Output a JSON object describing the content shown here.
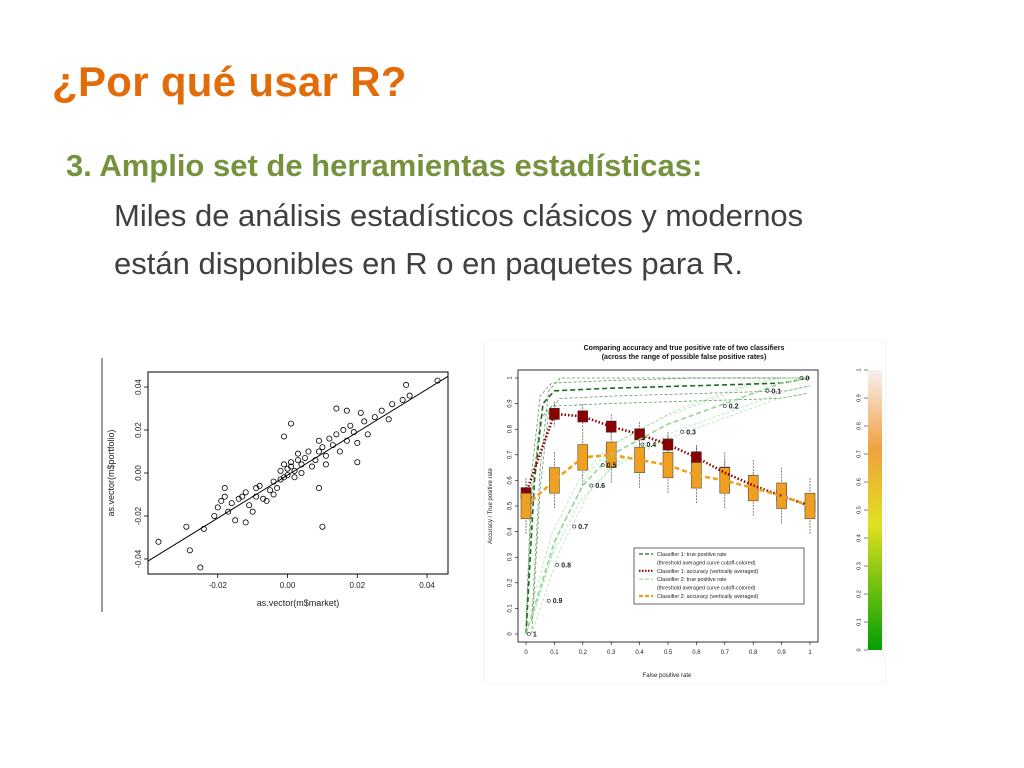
{
  "slide": {
    "title": "¿Por qué usar R?",
    "heading": "3. Amplio set de herramientas estadísticas:",
    "body_lines": [
      "Miles de análisis estadísticos clásicos y modernos",
      "están disponibles en R o en paquetes para R."
    ]
  },
  "colors": {
    "title": "#e36c0a",
    "heading": "#76923c",
    "body": "#404040",
    "classifier1_tpr": "#1e6b1e",
    "classifier1_acc": "#8b0000",
    "classifier2_tpr": "#90d890",
    "classifier2_acc": "#f0a020"
  },
  "chart_data": [
    {
      "type": "scatter",
      "title": "",
      "xlabel": "as.vector(m$market)",
      "ylabel": "as.vector(m$portfolio)",
      "x_ticks": [
        "-0.02",
        "0.00",
        "0.02",
        "0.04"
      ],
      "y_ticks": [
        "-0.04",
        "-0.02",
        "0.00",
        "0.02",
        "0.04"
      ],
      "xlim": [
        -0.04,
        0.046
      ],
      "ylim": [
        -0.047,
        0.047
      ],
      "regression_line": [
        [
          -0.04,
          -0.041
        ],
        [
          0.046,
          0.045
        ]
      ],
      "points": [
        [
          -0.037,
          -0.032
        ],
        [
          -0.029,
          -0.025
        ],
        [
          -0.028,
          -0.036
        ],
        [
          -0.025,
          -0.044
        ],
        [
          -0.024,
          -0.026
        ],
        [
          -0.021,
          -0.02
        ],
        [
          -0.02,
          -0.016
        ],
        [
          -0.019,
          -0.013
        ],
        [
          -0.018,
          -0.011
        ],
        [
          -0.018,
          -0.007
        ],
        [
          -0.017,
          -0.018
        ],
        [
          -0.016,
          -0.014
        ],
        [
          -0.015,
          -0.022
        ],
        [
          -0.014,
          -0.012
        ],
        [
          -0.013,
          -0.011
        ],
        [
          -0.012,
          -0.009
        ],
        [
          -0.011,
          -0.015
        ],
        [
          -0.01,
          -0.018
        ],
        [
          -0.009,
          -0.011
        ],
        [
          -0.009,
          -0.007
        ],
        [
          -0.008,
          -0.006
        ],
        [
          -0.007,
          -0.012
        ],
        [
          -0.006,
          -0.013
        ],
        [
          -0.005,
          -0.008
        ],
        [
          -0.004,
          -0.01
        ],
        [
          -0.004,
          -0.004
        ],
        [
          -0.003,
          -0.007
        ],
        [
          -0.002,
          -0.003
        ],
        [
          -0.002,
          0.001
        ],
        [
          -0.001,
          -0.002
        ],
        [
          -0.001,
          0.004
        ],
        [
          0.0,
          0.002
        ],
        [
          0.0,
          -0.001
        ],
        [
          0.001,
          0.003
        ],
        [
          0.001,
          0.005
        ],
        [
          0.002,
          0.001
        ],
        [
          0.002,
          -0.002
        ],
        [
          0.003,
          0.006
        ],
        [
          0.003,
          0.009
        ],
        [
          0.004,
          0.004
        ],
        [
          0.004,
          0.0
        ],
        [
          0.005,
          0.007
        ],
        [
          0.006,
          0.01
        ],
        [
          0.007,
          0.003
        ],
        [
          0.008,
          0.006
        ],
        [
          0.009,
          0.01
        ],
        [
          0.009,
          0.015
        ],
        [
          0.01,
          0.012
        ],
        [
          0.011,
          0.008
        ],
        [
          0.011,
          0.004
        ],
        [
          0.012,
          0.016
        ],
        [
          0.013,
          0.013
        ],
        [
          0.014,
          0.018
        ],
        [
          0.015,
          0.01
        ],
        [
          0.016,
          0.02
        ],
        [
          0.017,
          0.015
        ],
        [
          0.018,
          0.022
        ],
        [
          0.019,
          0.019
        ],
        [
          0.02,
          0.014
        ],
        [
          0.021,
          0.028
        ],
        [
          0.022,
          0.024
        ],
        [
          0.023,
          0.018
        ],
        [
          0.025,
          0.026
        ],
        [
          0.027,
          0.029
        ],
        [
          0.029,
          0.025
        ],
        [
          0.03,
          0.032
        ],
        [
          0.033,
          0.034
        ],
        [
          0.034,
          0.041
        ],
        [
          0.035,
          0.036
        ],
        [
          0.043,
          0.043
        ],
        [
          0.01,
          -0.025
        ],
        [
          0.001,
          0.023
        ],
        [
          0.017,
          0.029
        ],
        [
          0.02,
          0.005
        ],
        [
          -0.001,
          0.017
        ],
        [
          0.009,
          -0.007
        ],
        [
          -0.012,
          -0.023
        ],
        [
          0.014,
          0.03
        ]
      ]
    },
    {
      "type": "line",
      "title": "Comparing accuracy and true positive rate of two classifiers",
      "subtitle": "(across the range of possible false positive rates)",
      "xlabel": "False positive rate",
      "ylabel": "Accuracy / True positive rate",
      "x_ticks": [
        "0",
        "0.1",
        "0.2",
        "0.3",
        "0.4",
        "0.5",
        "0.6",
        "0.7",
        "0.8",
        "0.9",
        "1"
      ],
      "y_ticks": [
        "0",
        "0.1",
        "0.2",
        "0.3",
        "0.4",
        "0.5",
        "0.6",
        "0.7",
        "0.8",
        "0.9",
        "1"
      ],
      "xlim": [
        0,
        1
      ],
      "ylim": [
        0,
        1
      ],
      "legend_position": "bottom-right",
      "legend": [
        "Classifier 1: true positive rate",
        "(threshold averaged curve cutoff-colored)",
        "Classifier 1: accuracy (vertically averaged)",
        "Classifier 2: true positive rate",
        "(threshold averaged curve cutoff-colored)",
        "Classifier 2: accuracy (vertically averaged)"
      ],
      "series": [
        {
          "name": "Classifier 1: true positive rate",
          "style": "dashed-line",
          "x": [
            0,
            0.03,
            0.06,
            0.1,
            0.3,
            0.6,
            0.9,
            1
          ],
          "y": [
            0,
            0.6,
            0.9,
            0.95,
            0.96,
            0.97,
            0.98,
            1
          ]
        },
        {
          "name": "Classifier 1: accuracy (vertically averaged)",
          "style": "dotted-line",
          "x": [
            0,
            0.1,
            0.2,
            0.3,
            0.4,
            0.5,
            0.6,
            0.7,
            0.8,
            0.9,
            1
          ],
          "y": [
            0.55,
            0.86,
            0.85,
            0.81,
            0.78,
            0.74,
            0.69,
            0.63,
            0.58,
            0.54,
            0.5
          ]
        },
        {
          "name": "Classifier 2: true positive rate",
          "style": "dashed-line",
          "x": [
            0,
            0.1,
            0.2,
            0.3,
            0.4,
            0.5,
            0.6,
            0.7,
            0.8,
            0.9,
            1
          ],
          "y": [
            0,
            0.36,
            0.58,
            0.7,
            0.76,
            0.82,
            0.86,
            0.9,
            0.94,
            0.98,
            1
          ]
        },
        {
          "name": "Classifier 2: accuracy (vertically averaged)",
          "style": "dashed-line",
          "x": [
            0,
            0.1,
            0.2,
            0.3,
            0.4,
            0.5,
            0.6,
            0.7,
            0.8,
            0.9,
            1
          ],
          "y": [
            0.5,
            0.6,
            0.69,
            0.7,
            0.68,
            0.66,
            0.62,
            0.6,
            0.57,
            0.54,
            0.5
          ]
        }
      ],
      "cutoff_labels": [
        {
          "text": "1",
          "x": 0.01,
          "y": 0.0
        },
        {
          "text": "0.9",
          "x": 0.08,
          "y": 0.13
        },
        {
          "text": "0.8",
          "x": 0.11,
          "y": 0.27
        },
        {
          "text": "0.7",
          "x": 0.17,
          "y": 0.42
        },
        {
          "text": "0.6",
          "x": 0.23,
          "y": 0.58
        },
        {
          "text": "0.5",
          "x": 0.27,
          "y": 0.66
        },
        {
          "text": "0.4",
          "x": 0.41,
          "y": 0.74
        },
        {
          "text": "0.3",
          "x": 0.55,
          "y": 0.79
        },
        {
          "text": "0.2",
          "x": 0.7,
          "y": 0.89
        },
        {
          "text": "0.1",
          "x": 0.85,
          "y": 0.95
        },
        {
          "text": "0",
          "x": 0.97,
          "y": 1.0
        }
      ],
      "colorbar": {
        "ticks": [
          "0",
          "0.1",
          "0.2",
          "0.3",
          "0.4",
          "0.5",
          "0.6",
          "0.7",
          "0.8",
          "0.9",
          "1"
        ],
        "stops": [
          "#00a000",
          "#e0e020",
          "#f0a040",
          "#f8f0f0"
        ]
      }
    }
  ]
}
